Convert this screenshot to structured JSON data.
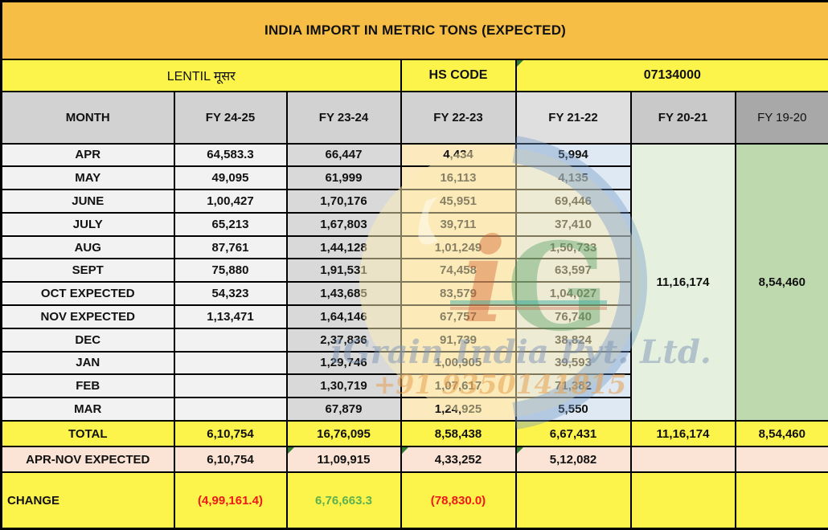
{
  "title": "INDIA IMPORT IN METRIC TONS (EXPECTED)",
  "subheader": {
    "commodity": "LENTIL मूसर",
    "hs_code_label": "HS CODE",
    "hs_code_value": "07134000"
  },
  "columns": [
    "MONTH",
    "FY 24-25",
    "FY 23-24",
    "FY 22-23",
    "FY 21-22",
    "FY 20-21",
    "FY 19-20"
  ],
  "months": [
    {
      "label": "APR",
      "fy2425": "64,583.3",
      "fy2324": "66,447",
      "fy2223": "4,434",
      "fy2122": "5,994"
    },
    {
      "label": "MAY",
      "fy2425": "49,095",
      "fy2324": "61,999",
      "fy2223": "16,113",
      "fy2122": "4,135"
    },
    {
      "label": "JUNE",
      "fy2425": "1,00,427",
      "fy2324": "1,70,176",
      "fy2223": "45,951",
      "fy2122": "69,446"
    },
    {
      "label": "JULY",
      "fy2425": "65,213",
      "fy2324": "1,67,803",
      "fy2223": "39,711",
      "fy2122": "37,410"
    },
    {
      "label": "AUG",
      "fy2425": "87,761",
      "fy2324": "1,44,128",
      "fy2223": "1,01,249",
      "fy2122": "1,50,733"
    },
    {
      "label": "SEPT",
      "fy2425": "75,880",
      "fy2324": "1,91,531",
      "fy2223": "74,458",
      "fy2122": "63,597"
    },
    {
      "label": "OCT EXPECTED",
      "fy2425": "54,323",
      "fy2324": "1,43,685",
      "fy2223": "83,579",
      "fy2122": "1,04,027"
    },
    {
      "label": "NOV EXPECTED",
      "fy2425": "1,13,471",
      "fy2324": "1,64,146",
      "fy2223": "67,757",
      "fy2122": "76,740"
    },
    {
      "label": "DEC",
      "fy2425": "",
      "fy2324": "2,37,836",
      "fy2223": "91,739",
      "fy2122": "38,824"
    },
    {
      "label": "JAN",
      "fy2425": "",
      "fy2324": "1,29,746",
      "fy2223": "1,00,905",
      "fy2122": "39,593"
    },
    {
      "label": "FEB",
      "fy2425": "",
      "fy2324": "1,30,719",
      "fy2223": "1,07,617",
      "fy2122": "71,382"
    },
    {
      "label": "MAR",
      "fy2425": "",
      "fy2324": "67,879",
      "fy2223": "1,24,925",
      "fy2122": "5,550"
    }
  ],
  "merged": {
    "fy2021_total": "11,16,174",
    "fy1920_total": "8,54,460"
  },
  "total_row": {
    "label": "TOTAL",
    "values": [
      "6,10,754",
      "16,76,095",
      "8,58,438",
      "6,67,431",
      "11,16,174",
      "8,54,460"
    ]
  },
  "apr_nov_row": {
    "label": "APR-NOV EXPECTED",
    "values": [
      "6,10,754",
      "11,09,915",
      "4,33,252",
      "5,12,082",
      "",
      ""
    ]
  },
  "change_row": {
    "label": "CHANGE",
    "values": [
      "(4,99,161.4)",
      "6,76,663.3",
      "(78,830.0)",
      "",
      "",
      ""
    ],
    "value_colors": [
      "red",
      "green",
      "red",
      "",
      "",
      ""
    ]
  },
  "watermark": {
    "logo_letters": "iG",
    "line1": "iGrain India Pvt. Ltd.",
    "line2": "+91 9350141815"
  },
  "colors": {
    "title_bg": "#F6BE45",
    "yellow_bg": "#FCF44A",
    "header_gray": "#D2D2D2",
    "fy2324_bg": "#D9D9D9",
    "fy2223_bg": "#FCE9BD",
    "fy2122_bg": "#DEE9F3",
    "fy2021_bg": "#E5F0DE",
    "fy1920_bg": "#BFD9AE",
    "apr_nov_bg": "#FBE3D5",
    "negative_red": "#F01818",
    "positive_green": "#5FB04E"
  },
  "chart_data": {
    "type": "table",
    "title": "INDIA IMPORT IN METRIC TONS (EXPECTED)",
    "commodity": "LENTIL मूसर",
    "hs_code": "07134000",
    "categories": [
      "APR",
      "MAY",
      "JUNE",
      "JULY",
      "AUG",
      "SEPT",
      "OCT EXPECTED",
      "NOV EXPECTED",
      "DEC",
      "JAN",
      "FEB",
      "MAR"
    ],
    "series": [
      {
        "name": "FY 24-25",
        "values": [
          64583.3,
          49095,
          100427,
          65213,
          87761,
          75880,
          54323,
          113471,
          null,
          null,
          null,
          null
        ],
        "total": 610754,
        "apr_nov_expected": 610754
      },
      {
        "name": "FY 23-24",
        "values": [
          66447,
          61999,
          170176,
          167803,
          144128,
          191531,
          143685,
          164146,
          237836,
          129746,
          130719,
          67879
        ],
        "total": 1676095,
        "apr_nov_expected": 1109915
      },
      {
        "name": "FY 22-23",
        "values": [
          4434,
          16113,
          45951,
          39711,
          101249,
          74458,
          83579,
          67757,
          91739,
          100905,
          107617,
          124925
        ],
        "total": 858438,
        "apr_nov_expected": 433252
      },
      {
        "name": "FY 21-22",
        "values": [
          5994,
          4135,
          69446,
          37410,
          150733,
          63597,
          104027,
          76740,
          38824,
          39593,
          71382,
          5550
        ],
        "total": 667431,
        "apr_nov_expected": 512082
      },
      {
        "name": "FY 20-21",
        "annual_total": 1116174
      },
      {
        "name": "FY 19-20",
        "annual_total": 854460
      }
    ],
    "change": {
      "FY 24-25": -499161.4,
      "FY 23-24": 676663.3,
      "FY 22-23": -78830.0
    }
  }
}
